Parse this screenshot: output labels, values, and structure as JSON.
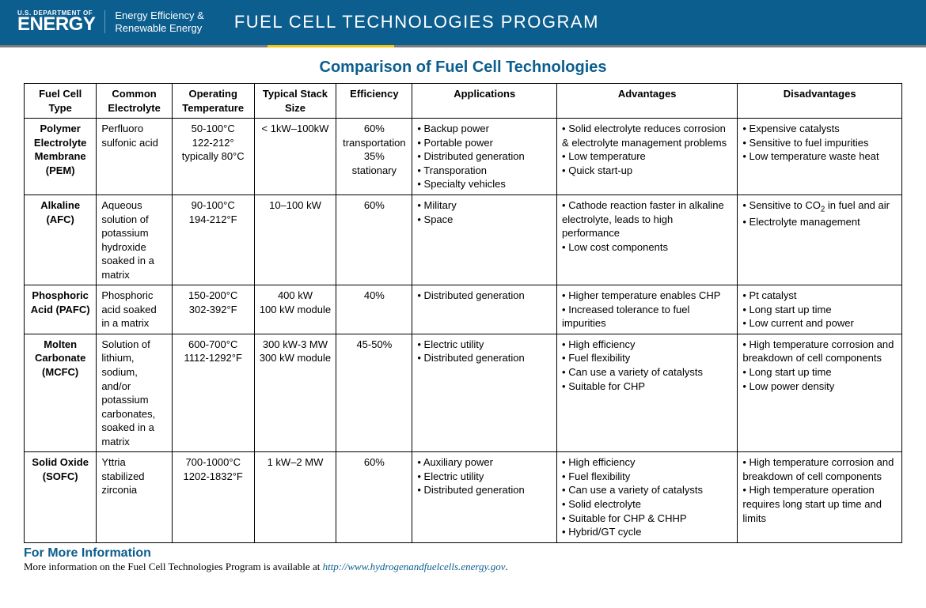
{
  "header": {
    "dept_small": "U.S. DEPARTMENT OF",
    "dept_big": "ENERGY",
    "office_line1": "Energy Efficiency &",
    "office_line2": "Renewable Energy",
    "program_title": "FUEL CELL TECHNOLOGIES PROGRAM",
    "header_bg": "#0b5e8e",
    "accent_yellow": "#f4c40f"
  },
  "table": {
    "title": "Comparison of Fuel Cell Technologies",
    "title_color": "#0b5e8e",
    "columns": [
      "Fuel Cell Type",
      "Common Electrolyte",
      "Operating Temperature",
      "Typical Stack Size",
      "Efficiency",
      "Applications",
      "Advantages",
      "Disadvantages"
    ],
    "rows": [
      {
        "type": "Polymer Electrolyte Membrane (PEM)",
        "electrolyte": "Perfluoro sulfonic acid",
        "temp": "50-100°C\n122-212°\ntypically 80°C",
        "stack": "< 1kW–100kW",
        "efficiency": "60% transportation\n35% stationary",
        "applications": [
          "Backup power",
          "Portable power",
          "Distributed generation",
          "Transporation",
          "Specialty vehicles"
        ],
        "advantages": [
          "Solid electrolyte reduces corrosion & electrolyte management problems",
          "Low temperature",
          "Quick start-up"
        ],
        "disadvantages": [
          "Expensive catalysts",
          "Sensitive to fuel impurities",
          "Low temperature waste heat"
        ]
      },
      {
        "type": "Alkaline (AFC)",
        "electrolyte": "Aqueous solution of potassium hydroxide soaked in a matrix",
        "temp": "90-100°C\n194-212°F",
        "stack": "10–100 kW",
        "efficiency": "60%",
        "applications": [
          "Military",
          "Space"
        ],
        "advantages": [
          "Cathode reaction faster in alkaline electrolyte, leads to high performance",
          "Low cost components"
        ],
        "disadvantages": [
          "Sensitive to CO₂ in fuel and air",
          "Electrolyte management"
        ]
      },
      {
        "type": "Phosphoric Acid (PAFC)",
        "electrolyte": "Phosphoric acid soaked in a matrix",
        "temp": "150-200°C\n302-392°F",
        "stack": "400 kW\n100 kW module",
        "efficiency": "40%",
        "applications": [
          "Distributed generation"
        ],
        "advantages": [
          "Higher temperature enables CHP",
          "Increased tolerance to fuel impurities"
        ],
        "disadvantages": [
          "Pt catalyst",
          "Long start up time",
          "Low current and power"
        ]
      },
      {
        "type": "Molten Carbonate (MCFC)",
        "electrolyte": "Solution of lithium, sodium, and/or potassium carbonates, soaked in a matrix",
        "temp": "600-700°C\n1112-1292°F",
        "stack": "300 kW-3 MW\n300 kW module",
        "efficiency": "45-50%",
        "applications": [
          "Electric utility",
          "Distributed generation"
        ],
        "advantages": [
          "High efficiency",
          "Fuel flexibility",
          "Can use a variety of catalysts",
          "Suitable for CHP"
        ],
        "disadvantages": [
          "High temperature corrosion and breakdown of cell components",
          "Long start up time",
          "Low power density"
        ]
      },
      {
        "type": "Solid Oxide (SOFC)",
        "electrolyte": "Yttria stabilized zirconia",
        "temp": "700-1000°C\n1202-1832°F",
        "stack": "1 kW–2 MW",
        "efficiency": "60%",
        "applications": [
          "Auxiliary power",
          "Electric utility",
          "Distributed generation"
        ],
        "advantages": [
          "High efficiency",
          "Fuel flexibility",
          "Can use a variety of catalysts",
          "Solid electrolyte",
          "Suitable for CHP & CHHP",
          "Hybrid/GT cycle"
        ],
        "disadvantages": [
          "High temperature corrosion and breakdown of cell components",
          "High temperature operation requires long start up time and limits"
        ]
      }
    ]
  },
  "footer": {
    "heading": "For More Information",
    "text_prefix": "More information on the Fuel Cell Technologies Program is available at ",
    "link_text": "http://www.hydrogenandfuelcells.energy.gov",
    "text_suffix": "."
  }
}
